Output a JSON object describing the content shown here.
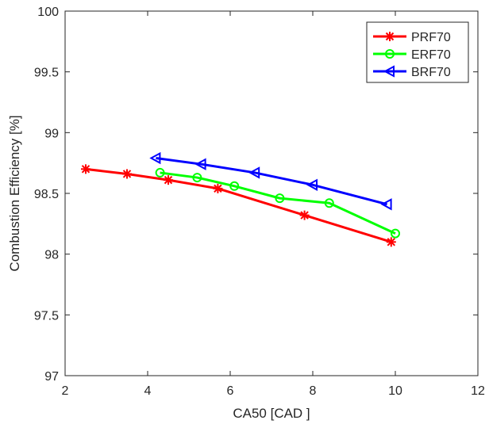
{
  "chart_data": {
    "type": "line",
    "xlabel": "CA50 [CAD ]",
    "ylabel": "Combustion Efficiency [%]",
    "xlim": [
      2,
      12
    ],
    "ylim": [
      97,
      100
    ],
    "xticks": [
      2,
      4,
      6,
      8,
      10,
      12
    ],
    "yticks": [
      97,
      97.5,
      98,
      98.5,
      99,
      99.5,
      100
    ],
    "xtick_labels": [
      "2",
      "4",
      "6",
      "8",
      "10",
      "12"
    ],
    "ytick_labels": [
      "97",
      "97.5",
      "98",
      "98.5",
      "99",
      "99.5",
      "100"
    ],
    "grid": false,
    "legend_position": "top-right",
    "series": [
      {
        "name": "PRF70",
        "color": "#ff0000",
        "marker": "asterisk",
        "x": [
          2.5,
          3.5,
          4.5,
          5.7,
          7.8,
          9.9
        ],
        "y": [
          98.7,
          98.66,
          98.61,
          98.54,
          98.32,
          98.1
        ]
      },
      {
        "name": "ERF70",
        "color": "#00ff00",
        "marker": "circle",
        "x": [
          4.3,
          5.2,
          6.1,
          7.2,
          8.4,
          10.0
        ],
        "y": [
          98.67,
          98.63,
          98.56,
          98.46,
          98.42,
          98.17
        ]
      },
      {
        "name": "BRF70",
        "color": "#0000ff",
        "marker": "triangle-left",
        "x": [
          4.2,
          5.3,
          6.6,
          8.0,
          9.8
        ],
        "y": [
          98.79,
          98.74,
          98.67,
          98.57,
          98.41
        ]
      }
    ]
  }
}
